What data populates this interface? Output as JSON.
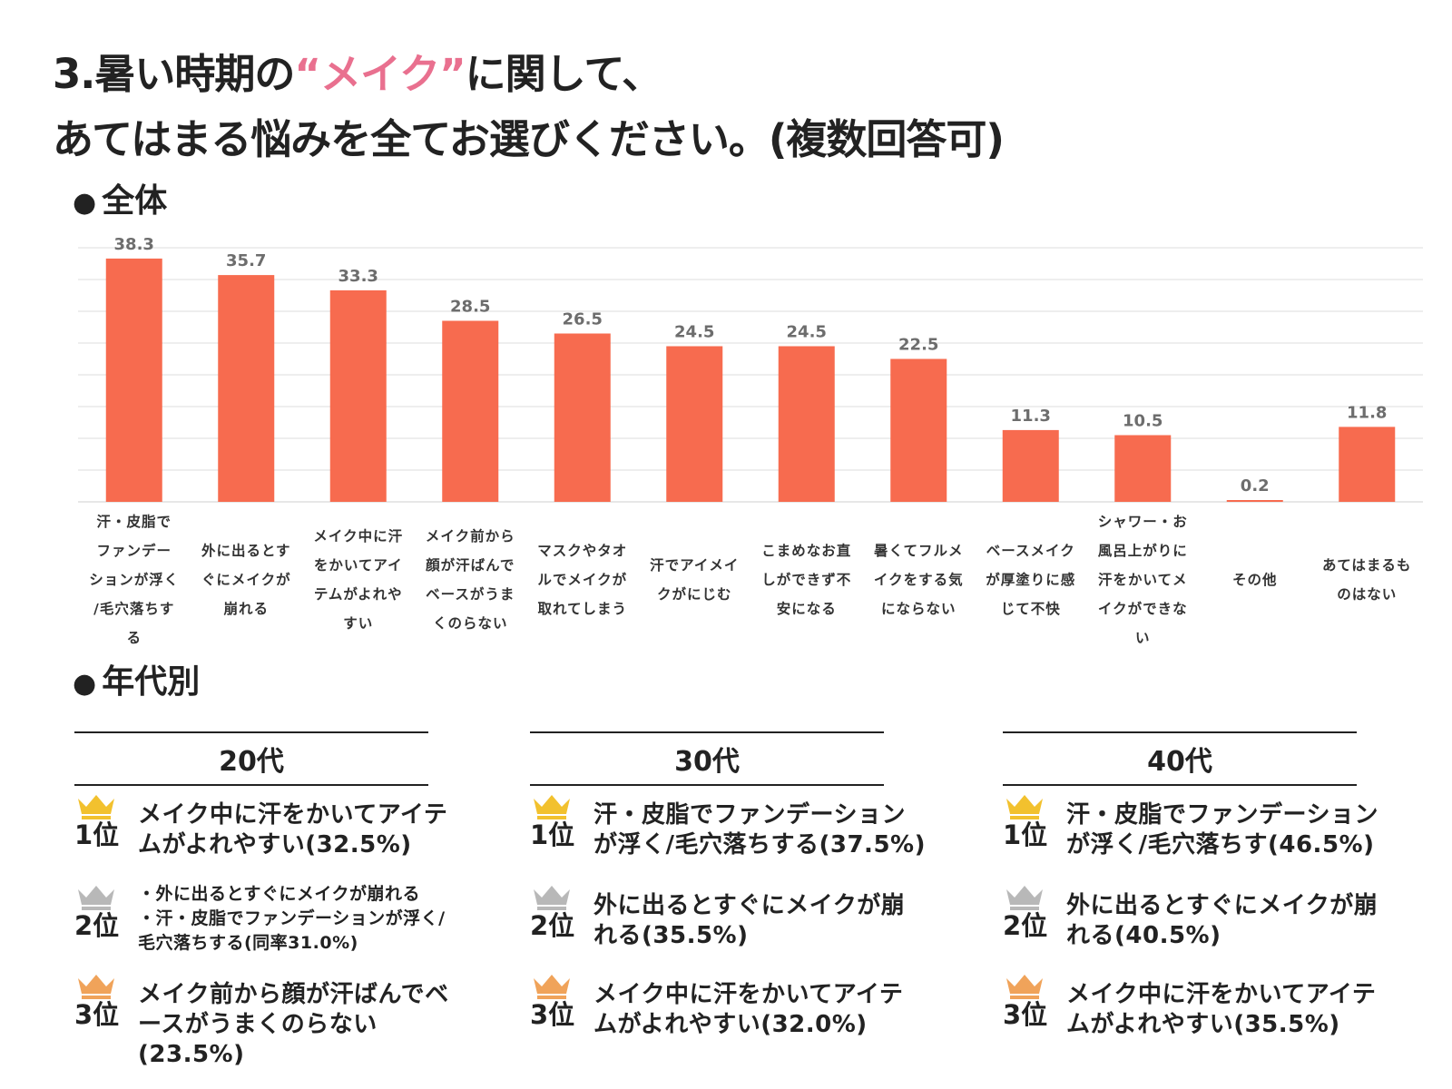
{
  "title": {
    "line1_prefix": "3.暑い時期の",
    "line1_accent": "“メイク”",
    "line1_suffix": "に関して、",
    "line2": "あてはまる悩みを全てお選びください。(複数回答可)"
  },
  "sections": {
    "overall": "全体",
    "by_age": "年代別"
  },
  "chart_data": {
    "type": "bar",
    "title": "全体",
    "categories": [
      "汗・皮脂でファンデーションが浮く/毛穴落ちする",
      "外に出るとすぐにメイクが崩れる",
      "メイク中に汗をかいてアイテムがよれやすい",
      "メイク前から顔が汗ばんでベースがうまくのらない",
      "マスクやタオルでメイクが取れてしまう",
      "汗でアイメイクがにじむ",
      "こまめなお直しができず不安になる",
      "暑くてフルメイクをする気にならない",
      "ベースメイクが厚塗りに感じて不快",
      "シャワー・お風呂上がりに汗をかいてメイクができない",
      "その他",
      "あてはまるものはない"
    ],
    "category_lines": [
      [
        "汗・皮脂で",
        "ファンデー",
        "ションが浮く",
        "/毛穴落ちす",
        "る"
      ],
      [
        "外に出るとす",
        "ぐにメイクが",
        "崩れる"
      ],
      [
        "メイク中に汗",
        "をかいてアイ",
        "テムがよれや",
        "すい"
      ],
      [
        "メイク前から",
        "顔が汗ばんで",
        "ベースがうま",
        "くのらない"
      ],
      [
        "マスクやタオ",
        "ルでメイクが",
        "取れてしまう"
      ],
      [
        "汗でアイメイ",
        "クがにじむ"
      ],
      [
        "こまめなお直",
        "しができず不",
        "安になる"
      ],
      [
        "暑くてフルメ",
        "イクをする気",
        "にならない"
      ],
      [
        "ベースメイク",
        "が厚塗りに感",
        "じて不快"
      ],
      [
        "シャワー・お",
        "風呂上がりに",
        "汗をかいてメ",
        "イクができな",
        "い"
      ],
      [
        "その他"
      ],
      [
        "あてはまるも",
        "のはない"
      ]
    ],
    "values": [
      38.3,
      35.7,
      33.3,
      28.5,
      26.5,
      24.5,
      24.5,
      22.5,
      11.3,
      10.5,
      0.2,
      11.8
    ],
    "value_labels": [
      "38.3",
      "35.7",
      "33.3",
      "28.5",
      "26.5",
      "24.5",
      "24.5",
      "22.5",
      "11.3",
      "10.5",
      "0.2",
      "11.8"
    ],
    "ylim": [
      0,
      40
    ],
    "gridlines": true,
    "xlabel": "",
    "ylabel": "",
    "bar_color": "#f76b4f"
  },
  "age_groups": [
    {
      "label": "20代",
      "ranks": [
        {
          "label": "1位",
          "crown": "gold-crown",
          "lines": [
            "メイク中に汗をかいてアイテ",
            "ムがよれやすい(32.5%)"
          ]
        },
        {
          "label": "2位",
          "crown": "silver-crown",
          "small": true,
          "lines": [
            "・外に出るとすぐにメイクが崩れる",
            "・汗・皮脂でファンデーションが浮く/",
            "毛穴落ちする(同率31.0%)"
          ]
        },
        {
          "label": "3位",
          "crown": "bronze-crown",
          "lines": [
            "メイク前から顔が汗ばんでベ",
            "ースがうまくのらない(23.5%)"
          ]
        }
      ]
    },
    {
      "label": "30代",
      "ranks": [
        {
          "label": "1位",
          "crown": "gold-crown",
          "lines": [
            "汗・皮脂でファンデーション",
            "が浮く/毛穴落ちする(37.5%)"
          ]
        },
        {
          "label": "2位",
          "crown": "silver-crown",
          "lines": [
            "外に出るとすぐにメイクが崩",
            "れる(35.5%)"
          ]
        },
        {
          "label": "3位",
          "crown": "bronze-crown",
          "lines": [
            "メイク中に汗をかいてアイテ",
            "ムがよれやすい(32.0%)"
          ]
        }
      ]
    },
    {
      "label": "40代",
      "ranks": [
        {
          "label": "1位",
          "crown": "gold-crown",
          "lines": [
            "汗・皮脂でファンデーション",
            "が浮く/毛穴落ちす(46.5%)"
          ]
        },
        {
          "label": "2位",
          "crown": "silver-crown",
          "lines": [
            "外に出るとすぐにメイクが崩",
            "れる(40.5%)"
          ]
        },
        {
          "label": "3位",
          "crown": "bronze-crown",
          "lines": [
            "メイク中に汗をかいてアイテ",
            "ムがよれやすい(35.5%)"
          ]
        }
      ]
    }
  ],
  "colors": {
    "accent": "#e9708f",
    "bar": "#f76b4f",
    "gold": "#f2c12e",
    "silver": "#b8b8b8",
    "bronze": "#f0a35a"
  }
}
